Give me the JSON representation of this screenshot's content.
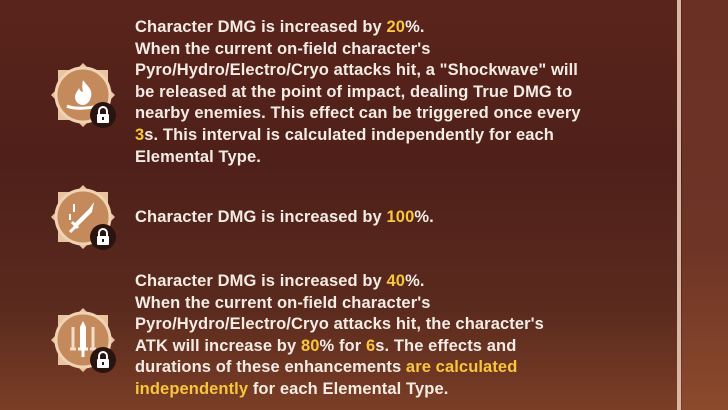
{
  "colors": {
    "text": "#f3ece4",
    "highlight": "#f7c63c",
    "icon_bg": "#c48a5c"
  },
  "blocks": [
    {
      "icon": "flame-icon",
      "locked": true,
      "lines": [
        [
          {
            "t": "Character DMG is increased by "
          },
          {
            "t": "20",
            "hl": true
          },
          {
            "t": "%."
          }
        ],
        [
          {
            "t": "When the current on-field character's"
          }
        ],
        [
          {
            "t": "Pyro/Hydro/Electro/Cryo attacks hit, a \"Shockwave\" will"
          }
        ],
        [
          {
            "t": "be released at the point of impact, dealing True DMG to"
          }
        ],
        [
          {
            "t": "nearby enemies. This effect can be triggered once every"
          }
        ],
        [
          {
            "t": "3",
            "hl": true
          },
          {
            "t": "s. This interval is calculated independently for each"
          }
        ],
        [
          {
            "t": "Elemental Type."
          }
        ]
      ]
    },
    {
      "icon": "sword-icon",
      "locked": true,
      "lines": [
        [
          {
            "t": "Character DMG is increased by "
          },
          {
            "t": "100",
            "hl": true
          },
          {
            "t": "%."
          }
        ]
      ]
    },
    {
      "icon": "swords-icon",
      "locked": true,
      "lines": [
        [
          {
            "t": "Character DMG is increased by "
          },
          {
            "t": "40",
            "hl": true
          },
          {
            "t": "%."
          }
        ],
        [
          {
            "t": "When the current on-field character's"
          }
        ],
        [
          {
            "t": "Pyro/Hydro/Electro/Cryo attacks hit, the character's"
          }
        ],
        [
          {
            "t": "ATK will increase by "
          },
          {
            "t": "80",
            "hl": true
          },
          {
            "t": "% for "
          },
          {
            "t": "6",
            "hl": true
          },
          {
            "t": "s. The effects and"
          }
        ],
        [
          {
            "t": "durations of these enhancements "
          },
          {
            "t": "are calculated",
            "hl": true
          }
        ],
        [
          {
            "t": "independently",
            "hl": true
          },
          {
            "t": " for each Elemental Type."
          }
        ]
      ]
    }
  ]
}
